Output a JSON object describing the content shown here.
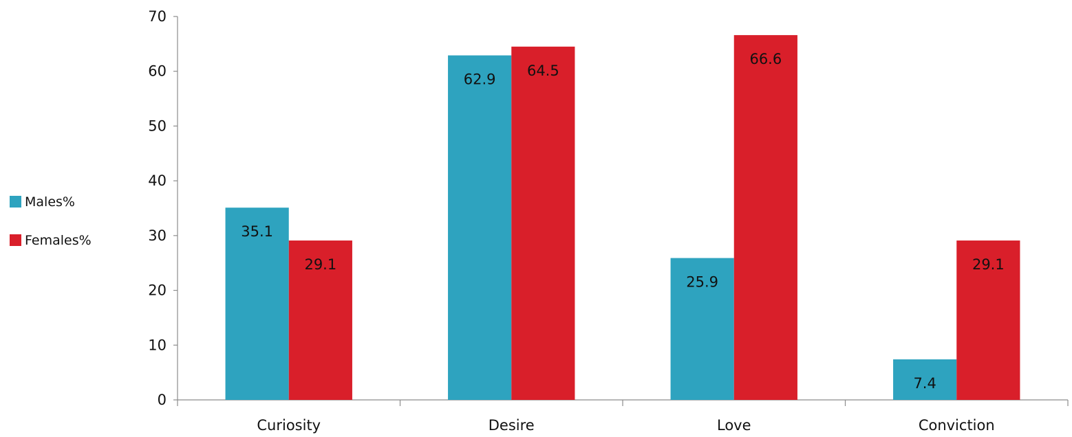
{
  "chart_data": {
    "type": "bar",
    "categories": [
      "Curiosity",
      "Desire",
      "Love",
      "Conviction"
    ],
    "series": [
      {
        "name": "Males%",
        "values": [
          35.1,
          62.9,
          25.9,
          7.4
        ],
        "color": "#2ea3bf"
      },
      {
        "name": "Females%",
        "values": [
          29.1,
          64.5,
          66.6,
          29.1
        ],
        "color": "#d91f2a"
      }
    ],
    "title": "",
    "xlabel": "",
    "ylabel": "",
    "ylim": [
      0,
      70
    ],
    "yticks": [
      0,
      10,
      20,
      30,
      40,
      50,
      60,
      70
    ],
    "grid": false,
    "legend_position": "left",
    "data_labels": true
  }
}
